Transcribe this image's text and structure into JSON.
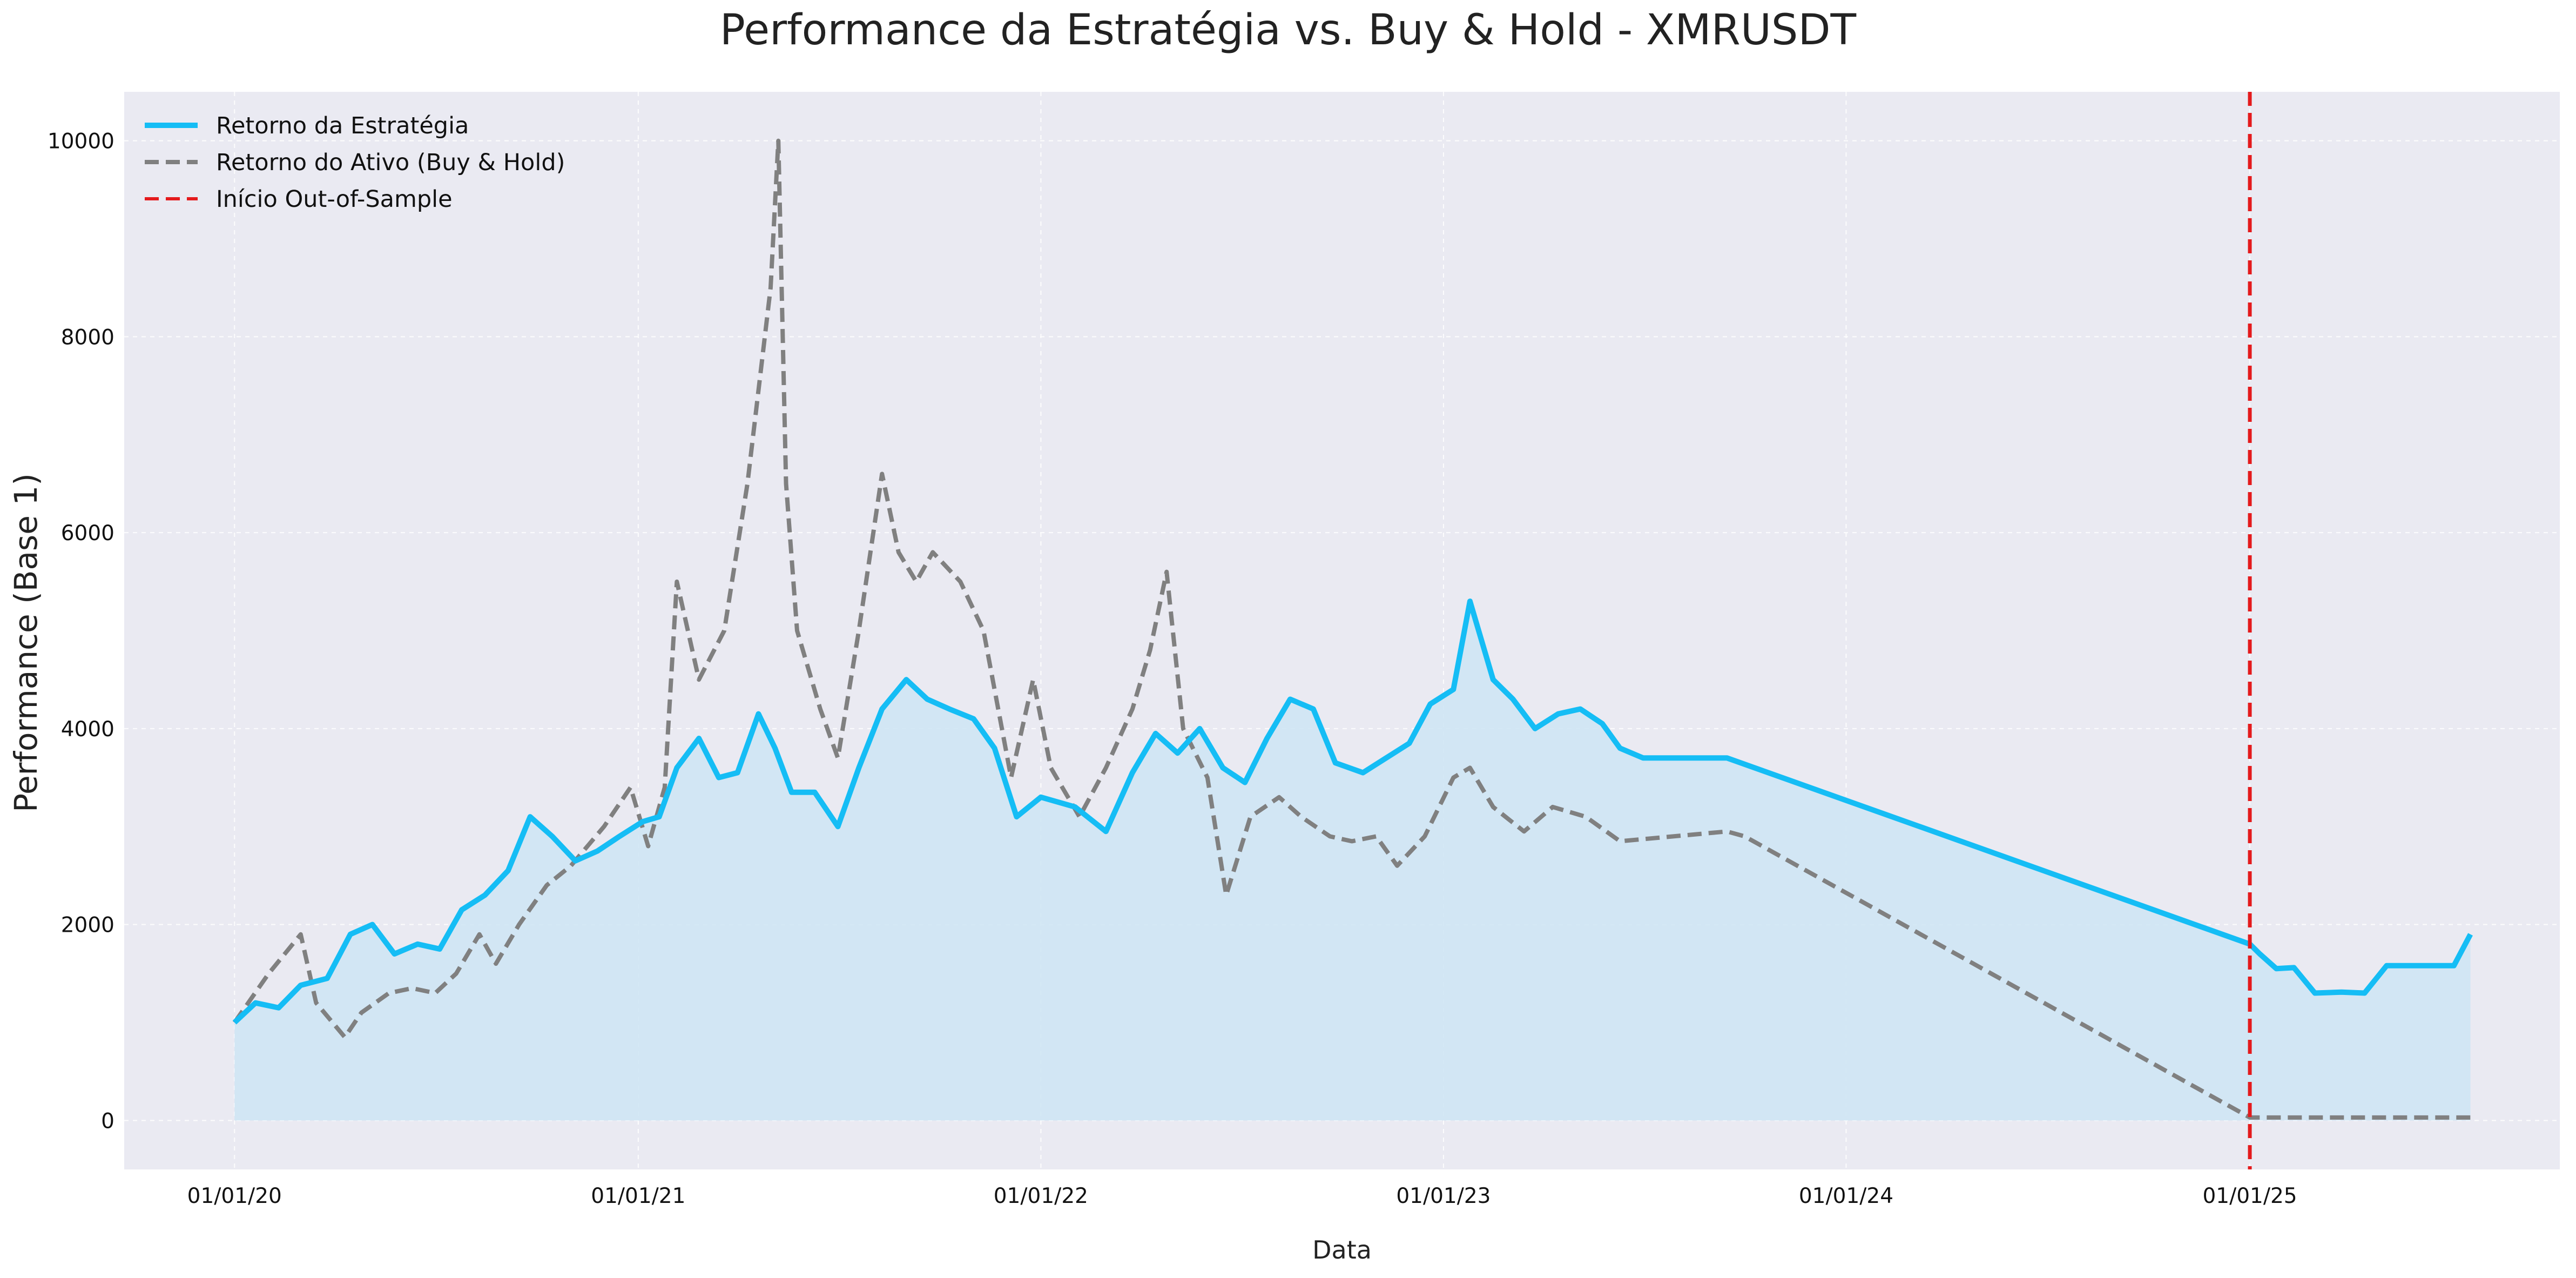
{
  "chart_data": {
    "type": "line",
    "title": "Performance da Estratégia vs. Buy & Hold - XMRUSDT",
    "xlabel": "Data",
    "ylabel": "Performance (Base 1)",
    "ylim": [
      -500,
      10500
    ],
    "xlim": [
      "2019-09-23",
      "2025-10-09"
    ],
    "x_ticks": [
      {
        "date": "2020-01-01",
        "label": "01/01/20"
      },
      {
        "date": "2021-01-01",
        "label": "01/01/21"
      },
      {
        "date": "2022-01-01",
        "label": "01/01/22"
      },
      {
        "date": "2023-01-01",
        "label": "01/01/23"
      },
      {
        "date": "2024-01-01",
        "label": "01/01/24"
      },
      {
        "date": "2025-01-01",
        "label": "01/01/25"
      }
    ],
    "y_ticks": [
      0,
      2000,
      4000,
      6000,
      8000,
      10000
    ],
    "grid": true,
    "legend_position": "top-left",
    "vline": {
      "date": "2025-01-01",
      "name": "Início Out-of-Sample",
      "color": "#e41a1c"
    },
    "colors": {
      "strategy": "#15bdf5",
      "asset": "#808080",
      "fill": "#cfe5f4",
      "background": "#eaeaf2"
    },
    "series": [
      {
        "name": "Retorno da Estratégia",
        "style": "solid",
        "x": [
          "2020-01-01",
          "2020-01-20",
          "2020-02-10",
          "2020-03-01",
          "2020-03-25",
          "2020-04-15",
          "2020-05-05",
          "2020-05-25",
          "2020-06-15",
          "2020-07-05",
          "2020-07-25",
          "2020-08-15",
          "2020-09-05",
          "2020-09-25",
          "2020-10-15",
          "2020-11-05",
          "2020-11-25",
          "2020-12-15",
          "2021-01-05",
          "2021-01-20",
          "2021-02-05",
          "2021-02-25",
          "2021-03-15",
          "2021-04-01",
          "2021-04-20",
          "2021-05-05",
          "2021-05-20",
          "2021-06-10",
          "2021-07-01",
          "2021-07-20",
          "2021-08-10",
          "2021-09-01",
          "2021-09-20",
          "2021-10-10",
          "2021-11-01",
          "2021-11-20",
          "2021-12-10",
          "2022-01-01",
          "2022-02-01",
          "2022-03-01",
          "2022-03-25",
          "2022-04-15",
          "2022-05-05",
          "2022-05-25",
          "2022-06-15",
          "2022-07-05",
          "2022-07-25",
          "2022-08-15",
          "2022-09-05",
          "2022-09-25",
          "2022-10-20",
          "2022-11-10",
          "2022-12-01",
          "2022-12-20",
          "2023-01-10",
          "2023-01-25",
          "2023-02-15",
          "2023-03-05",
          "2023-03-25",
          "2023-04-15",
          "2023-05-05",
          "2023-05-25",
          "2023-06-10",
          "2023-07-01",
          "2023-08-01",
          "2023-09-01",
          "2023-09-15",
          "2025-01-01",
          "2025-01-10",
          "2025-01-25",
          "2025-02-10",
          "2025-03-01",
          "2025-03-25",
          "2025-04-15",
          "2025-05-05",
          "2025-06-01",
          "2025-06-20",
          "2025-07-05",
          "2025-07-20"
        ],
        "values": [
          1000,
          1200,
          1150,
          1380,
          1450,
          1900,
          2000,
          1700,
          1800,
          1750,
          2150,
          2300,
          2550,
          3100,
          2900,
          2650,
          2750,
          2900,
          3050,
          3100,
          3600,
          3900,
          3500,
          3550,
          4150,
          3800,
          3350,
          3350,
          3000,
          3600,
          4200,
          4500,
          4300,
          4200,
          4100,
          3800,
          3100,
          3300,
          3200,
          2950,
          3550,
          3950,
          3750,
          4000,
          3600,
          3450,
          3900,
          4300,
          4200,
          3650,
          3550,
          3700,
          3850,
          4250,
          4400,
          5300,
          4500,
          4300,
          4000,
          4150,
          4200,
          4050,
          3800,
          3700,
          3700,
          3700,
          3700,
          1800,
          1700,
          1550,
          1560,
          1300,
          1310,
          1300,
          1580,
          1580,
          1580,
          1580,
          1900
        ]
      },
      {
        "name": "Retorno do Ativo (Buy & Hold)",
        "style": "dashed",
        "x": [
          "2020-01-01",
          "2020-02-01",
          "2020-03-01",
          "2020-03-15",
          "2020-04-10",
          "2020-04-25",
          "2020-05-20",
          "2020-06-10",
          "2020-07-01",
          "2020-07-20",
          "2020-08-10",
          "2020-08-25",
          "2020-09-15",
          "2020-10-10",
          "2020-11-01",
          "2020-12-01",
          "2020-12-25",
          "2021-01-10",
          "2021-01-25",
          "2021-02-05",
          "2021-02-25",
          "2021-03-20",
          "2021-04-10",
          "2021-05-01",
          "2021-05-08",
          "2021-05-15",
          "2021-05-25",
          "2021-06-15",
          "2021-07-01",
          "2021-07-20",
          "2021-08-10",
          "2021-08-25",
          "2021-09-10",
          "2021-09-25",
          "2021-10-20",
          "2021-11-10",
          "2021-12-05",
          "2021-12-25",
          "2022-01-10",
          "2022-02-05",
          "2022-03-01",
          "2022-03-25",
          "2022-04-10",
          "2022-04-25",
          "2022-05-10",
          "2022-06-01",
          "2022-06-18",
          "2022-07-10",
          "2022-08-05",
          "2022-08-25",
          "2022-09-20",
          "2022-10-10",
          "2022-11-01",
          "2022-11-20",
          "2022-12-15",
          "2023-01-10",
          "2023-01-25",
          "2023-02-15",
          "2023-03-15",
          "2023-04-10",
          "2023-05-10",
          "2023-06-10",
          "2023-09-15",
          "2023-10-01",
          "2025-01-01",
          "2025-07-20"
        ],
        "values": [
          1000,
          1500,
          1900,
          1200,
          850,
          1100,
          1300,
          1350,
          1300,
          1500,
          1900,
          1600,
          2000,
          2400,
          2600,
          3000,
          3400,
          2800,
          3400,
          5500,
          4500,
          5000,
          6500,
          8500,
          10000,
          6500,
          5000,
          4200,
          3700,
          5000,
          6600,
          5800,
          5500,
          5800,
          5500,
          5000,
          3500,
          4500,
          3600,
          3100,
          3600,
          4200,
          4800,
          5600,
          4000,
          3500,
          2300,
          3100,
          3300,
          3100,
          2900,
          2850,
          2900,
          2600,
          2900,
          3500,
          3600,
          3200,
          2950,
          3200,
          3100,
          2850,
          2950,
          2900,
          30,
          30
        ]
      }
    ]
  }
}
